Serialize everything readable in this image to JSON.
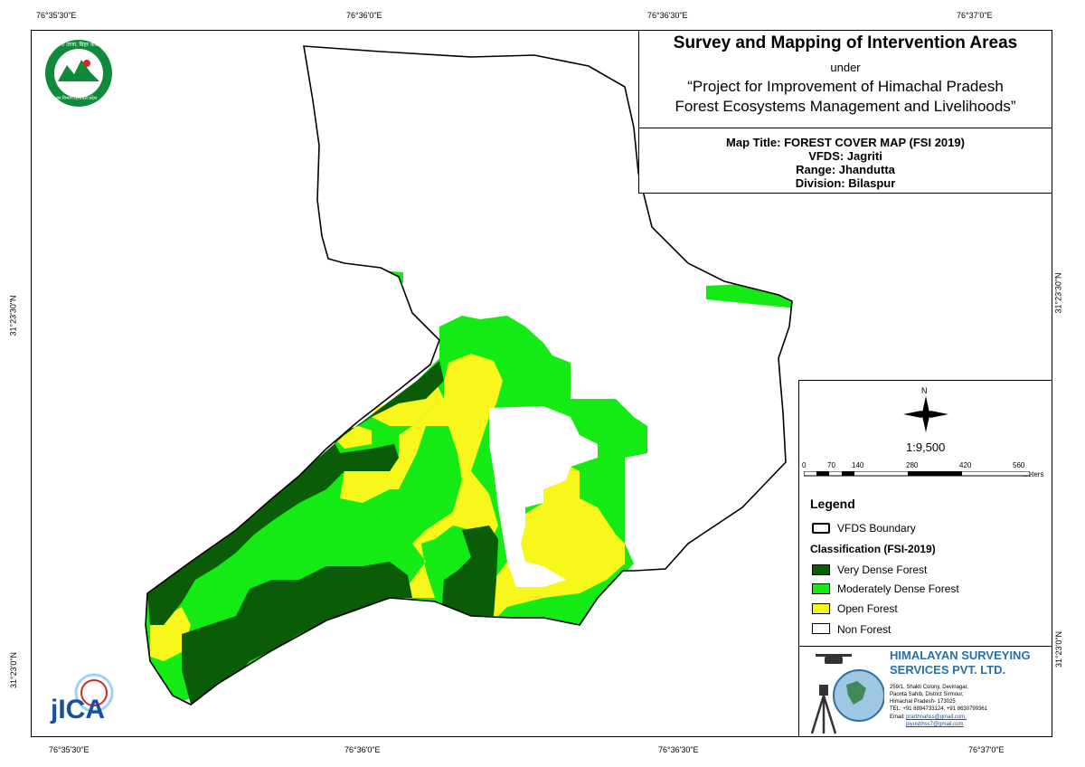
{
  "coords": {
    "top": [
      "76°35'30\"E",
      "76°36'0\"E",
      "76°36'30\"E",
      "76°37'0\"E"
    ],
    "bottom": [
      "76°35'30\"E",
      "76°36'0\"E",
      "76°36'30\"E",
      "76°37'0\"E"
    ],
    "left": [
      "31°23'30\"N",
      "31°23'0\"N"
    ],
    "right": [
      "31°23'30\"N",
      "31°23'0\"N"
    ]
  },
  "title": {
    "main": "Survey and Mapping of Intervention Areas",
    "under": "under",
    "project_line1": "“Project for Improvement of Himachal Pradesh",
    "project_line2": "Forest Ecosystems Management and Livelihoods”"
  },
  "info": {
    "map_title": "Map Title: FOREST COVER MAP (FSI 2019)",
    "vfds": "VFDS: Jagriti",
    "range": "Range: Jhandutta",
    "division": "Division: Bilaspur"
  },
  "north": "N",
  "scale": {
    "ratio": "1:9,500",
    "ticks": [
      "0",
      "70",
      "140",
      "280",
      "420",
      "560"
    ],
    "unit": "Meters"
  },
  "legend": {
    "title": "Legend",
    "boundary": "VFDS Boundary",
    "classification_title": "Classification (FSI-2019)",
    "items": [
      {
        "label": "Very Dense Forest",
        "color": "#0b5c07"
      },
      {
        "label": "Moderately Dense Forest",
        "color": "#14ea14"
      },
      {
        "label": "Open Forest",
        "color": "#f7f71b"
      },
      {
        "label": "Non Forest",
        "color": "#ffffff"
      }
    ]
  },
  "company": {
    "name_line1": "HIMALAYAN SURVEYING",
    "name_line2": "SERVICES PVT. LTD.",
    "address": [
      "259/1, Shakti Colony, Devinagar,",
      "Paonta Sahib, District Sirmour,",
      "Himachal Pradesh- 173025"
    ],
    "tel": "TEL: +91 8894733124, +91 8630799361",
    "email_label": "Email:",
    "email1": "prarthnahss@gmail.com,",
    "email2": "piyushhss7@gmail.com"
  },
  "logos": {
    "forest_dept_text": "हर भरा ताजा, ग्रिहर कान्नमा",
    "forest_dept_bottom": "वन विभाग हिमाचल प्रदेश",
    "jica": "jICA"
  },
  "colors": {
    "very_dense": "#0b5c07",
    "moderately_dense": "#14ea14",
    "open": "#f7f71b",
    "non_forest": "#ffffff",
    "company": "#2a6fa8"
  }
}
